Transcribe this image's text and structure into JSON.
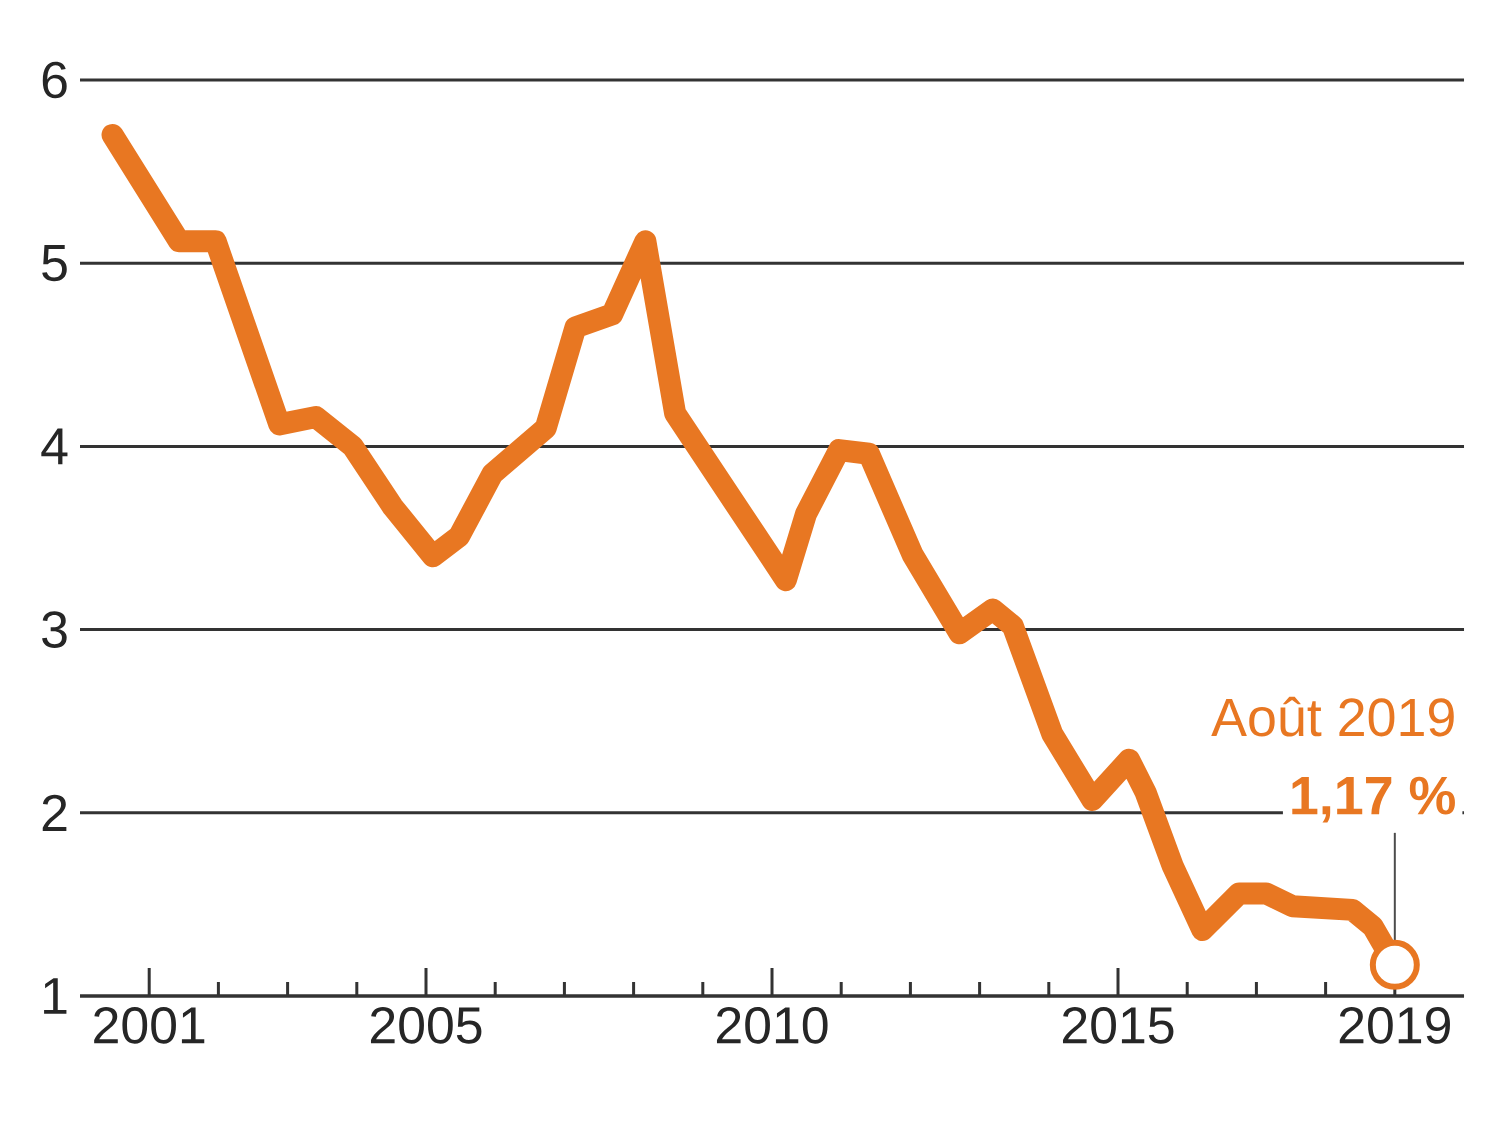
{
  "chart_data": {
    "type": "line",
    "x": [
      2000.47,
      2001.43,
      2001.96,
      2002.88,
      2003.41,
      2003.94,
      2004.52,
      2005.1,
      2005.48,
      2005.96,
      2006.73,
      2007.16,
      2007.69,
      2008.17,
      2008.6,
      2010.2,
      2010.49,
      2010.97,
      2011.4,
      2012.03,
      2012.71,
      2013.19,
      2013.48,
      2014.05,
      2014.63,
      2015.16,
      2015.4,
      2015.79,
      2016.22,
      2016.75,
      2017.14,
      2017.52,
      2018.39,
      2018.68,
      2019.0
    ],
    "series": [
      {
        "color": "#e87722",
        "values": [
          5.7,
          5.12,
          5.12,
          4.12,
          4.16,
          4.0,
          3.67,
          3.4,
          3.51,
          3.85,
          4.1,
          4.65,
          4.72,
          5.12,
          4.18,
          3.27,
          3.63,
          3.98,
          3.96,
          3.41,
          2.98,
          3.11,
          3.02,
          2.43,
          2.07,
          2.29,
          2.11,
          1.71,
          1.36,
          1.56,
          1.56,
          1.49,
          1.47,
          1.38,
          1.17
        ]
      }
    ],
    "xlim": [
      2000,
      2020
    ],
    "ylim": [
      1,
      6
    ],
    "xticks": [
      2001,
      {
        "value": 2002,
        "label": null
      },
      {
        "value": 2003,
        "label": null
      },
      {
        "value": 2004,
        "label": null
      },
      2005,
      {
        "value": 2006,
        "label": null
      },
      {
        "value": 2007,
        "label": null
      },
      {
        "value": 2008,
        "label": null
      },
      {
        "value": 2009,
        "label": null
      },
      2010,
      {
        "value": 2011,
        "label": null
      },
      {
        "value": 2012,
        "label": null
      },
      {
        "value": 2013,
        "label": null
      },
      {
        "value": 2014,
        "label": null
      },
      2015,
      {
        "value": 2016,
        "label": null
      },
      {
        "value": 2017,
        "label": null
      },
      {
        "value": 2018,
        "label": null
      },
      2019
    ],
    "yticks": [
      1,
      2,
      3,
      4,
      5,
      6
    ],
    "grid": "y",
    "marker": "none",
    "line_style": "solid",
    "annotations": [
      "Août 2019",
      {
        "text": "1,17 %",
        "x": 2019.0,
        "y": 1.17
      }
    ]
  }
}
